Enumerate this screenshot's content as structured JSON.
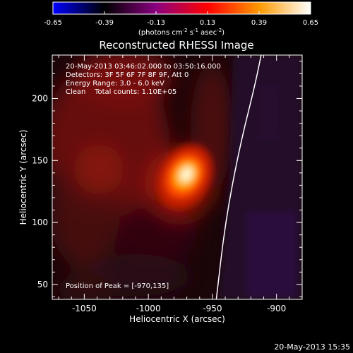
{
  "chart_data": {
    "type": "heatmap",
    "title": "Reconstructed RHESSI Image",
    "xlabel": "Heliocentric X (arcsec)",
    "ylabel": "Heliocentric Y (arcsec)",
    "xlim": [
      -1075,
      -880
    ],
    "ylim": [
      38,
      235
    ],
    "x_ticks": [
      "-1050",
      "-1000",
      "-950",
      "-900"
    ],
    "x_tick_values": [
      -1050,
      -1000,
      -950,
      -900
    ],
    "y_ticks": [
      "50",
      "100",
      "150",
      "200"
    ],
    "y_tick_values": [
      50,
      100,
      150,
      200
    ],
    "colorbar": {
      "min": -0.65,
      "max": 0.65,
      "ticks": [
        "-0.65",
        "-0.39",
        "-0.13",
        "0.13",
        "0.39",
        "0.65"
      ],
      "tick_values": [
        -0.65,
        -0.39,
        -0.13,
        0.13,
        0.39,
        0.65
      ],
      "label_main": "(photons cm",
      "label_sup1": "-2",
      "label_mid1": " s",
      "label_sup2": "-1",
      "label_mid2": " asec",
      "label_sup3": "-2",
      "label_end": ")",
      "colors": [
        "#0000ff",
        "#000000",
        "#8a0080",
        "#ff0000",
        "#ff9900",
        "#ffffff"
      ]
    },
    "annotations": [
      "20-May-2013 03:46:02.000 to 03:50:16.000",
      "Detectors: 3F 5F 6F 7F 8F 9F, Att 0",
      "Energy Range: 3.0 - 6.0 keV",
      "Clean    Total counts: 1.10E+05"
    ],
    "peak_label": "Position of Peak = [-970,135]",
    "peak": {
      "x": -970,
      "y": 135
    },
    "limb_curve": [
      {
        "x": -947,
        "y": 38
      },
      {
        "x": -940,
        "y": 100
      },
      {
        "x": -929,
        "y": 160
      },
      {
        "x": -917,
        "y": 210
      },
      {
        "x": -912,
        "y": 235
      }
    ]
  },
  "timestamp": "20-May-2013 15:35"
}
